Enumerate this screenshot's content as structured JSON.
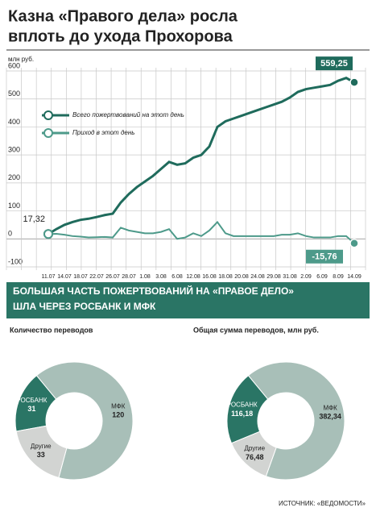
{
  "title": [
    "Казна «Правого дела» росла",
    "вплоть до ухода Прохорова"
  ],
  "section_title": [
    "БОЛЬШАЯ ЧАСТЬ ПОЖЕРТВОВАНИЙ НА «ПРАВОЕ ДЕЛО»",
    "ШЛА ЧЕРЕЗ РОСБАНК И МФК"
  ],
  "source": "ИСТОЧНИК: «ВЕДОМОСТИ»",
  "chart_data": [
    {
      "type": "line",
      "y_label": "млн руб.",
      "categories": [
        "11.07",
        null,
        "14.07",
        null,
        "18.07",
        null,
        "22.07",
        null,
        "26.07",
        null,
        "28.07",
        null,
        "1.08",
        null,
        "3.08",
        null,
        "6.08",
        null,
        "12.08",
        null,
        "16.08",
        null,
        "18.08",
        null,
        "20.08",
        null,
        "24.08",
        null,
        "29.08",
        null,
        "31.08",
        null,
        "2.09",
        null,
        "6.09",
        null,
        "8.09",
        null,
        "14.09"
      ],
      "series": [
        {
          "name": "Всего пожертвований на этот день",
          "color": "#1f6b5c",
          "values": [
            17.32,
            35,
            50,
            60,
            68,
            72,
            78,
            85,
            90,
            130,
            160,
            185,
            205,
            225,
            250,
            275,
            265,
            270,
            290,
            300,
            330,
            400,
            420,
            430,
            440,
            450,
            460,
            470,
            480,
            490,
            505,
            525,
            535,
            540,
            545,
            550,
            565,
            575,
            559.25
          ],
          "value_labels": [
            "17,32",
            null,
            null,
            null,
            null,
            null,
            null,
            null,
            null,
            null,
            null,
            null,
            null,
            null,
            null,
            null,
            null,
            null,
            null,
            null,
            null,
            null,
            null,
            null,
            null,
            null,
            null,
            null,
            null,
            null,
            null,
            null,
            null,
            null,
            null,
            null,
            null,
            null,
            "559,25"
          ]
        },
        {
          "name": "Приход в этот день",
          "color": "#4d9a8a",
          "values": [
            17.32,
            18,
            15,
            10,
            8,
            5,
            6,
            7,
            5,
            40,
            30,
            25,
            20,
            20,
            25,
            35,
            0,
            5,
            20,
            10,
            30,
            60,
            20,
            10,
            10,
            10,
            10,
            10,
            10,
            15,
            15,
            20,
            10,
            5,
            5,
            5,
            10,
            10,
            -15.76
          ],
          "value_labels": [
            null,
            null,
            null,
            null,
            null,
            null,
            null,
            null,
            null,
            null,
            null,
            null,
            null,
            null,
            null,
            null,
            null,
            null,
            null,
            null,
            null,
            null,
            null,
            null,
            null,
            null,
            null,
            null,
            null,
            null,
            null,
            null,
            null,
            null,
            null,
            null,
            null,
            null,
            "-15,76"
          ]
        }
      ],
      "ylim": [
        -100,
        600
      ],
      "yticks": [
        -100,
        0,
        100,
        200,
        300,
        400,
        500,
        600
      ],
      "grid": true
    },
    {
      "type": "donut",
      "title": "Количество переводов",
      "categories": [
        "РОСБАНК",
        "МФК",
        "Другие"
      ],
      "values": [
        31,
        120,
        33
      ],
      "colors": [
        "#2a7565",
        "#a8bfb8",
        "#d2d4d2"
      ]
    },
    {
      "type": "donut",
      "title": "Общая сумма переводов, млн руб.",
      "categories": [
        "РОСБАНК",
        "МФК",
        "Другие"
      ],
      "values": [
        116.18,
        382.34,
        76.48
      ],
      "value_labels": [
        "116,18",
        "382,34",
        "76,48"
      ],
      "colors": [
        "#2a7565",
        "#a8bfb8",
        "#d2d4d2"
      ]
    }
  ]
}
